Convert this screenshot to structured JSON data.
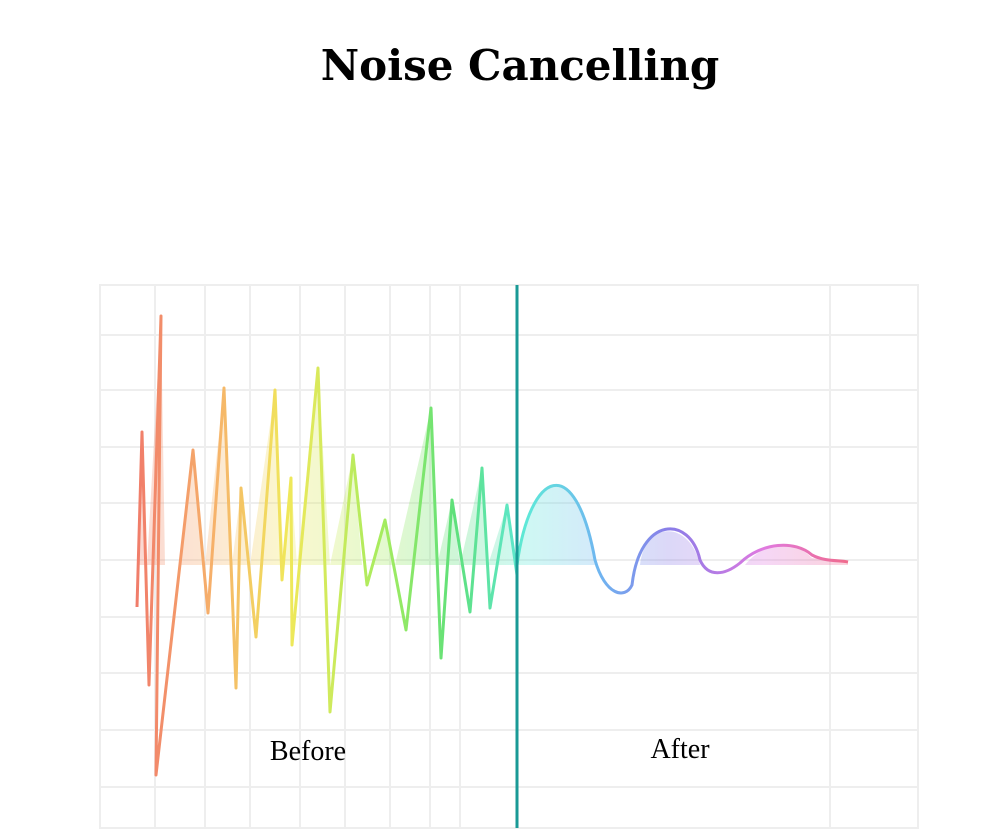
{
  "title": "Noise Cancelling",
  "labels": {
    "before": "Before",
    "after": "After"
  }
}
